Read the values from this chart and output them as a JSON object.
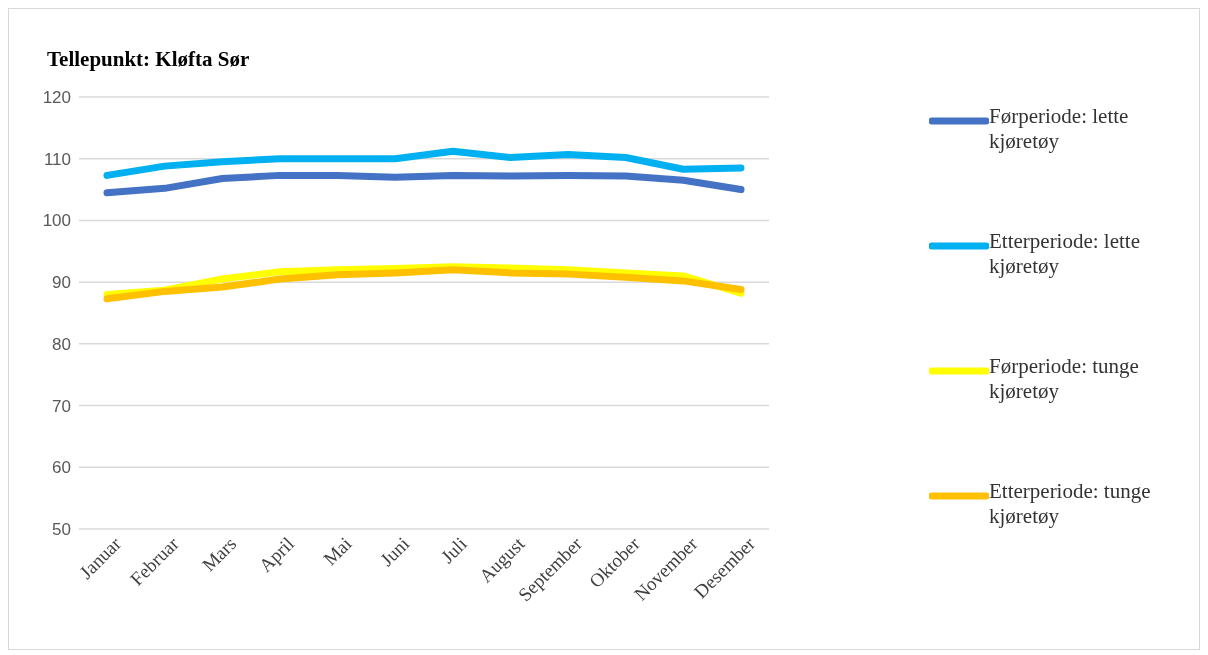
{
  "chart_data": {
    "type": "line",
    "title": "Tellepunkt: Kløfta Sør",
    "categories": [
      "Januar",
      "Februar",
      "Mars",
      "April",
      "Mai",
      "Juni",
      "Juli",
      "August",
      "September",
      "Oktober",
      "November",
      "Desember"
    ],
    "series": [
      {
        "name": "Førperiode: lette kjøretøy",
        "color": "#4472c4",
        "values": [
          104.5,
          105.2,
          106.8,
          107.3,
          107.3,
          107,
          107.3,
          107.2,
          107.3,
          107.2,
          106.5,
          105
        ]
      },
      {
        "name": "Etterperiode: lette kjøretøy",
        "color": "#00b0f0",
        "values": [
          107.3,
          108.8,
          109.5,
          110,
          110,
          110,
          111.2,
          110.2,
          110.7,
          110.2,
          108.3,
          108.5
        ]
      },
      {
        "name": "Førperiode: tunge kjøretøy",
        "color": "#ffff00",
        "values": [
          88,
          88.7,
          90.5,
          91.7,
          92,
          92.2,
          92.5,
          92.3,
          92,
          91.5,
          91,
          88.2
        ]
      },
      {
        "name": "Etterperiode: tunge kjøretøy",
        "color": "#ffc000",
        "values": [
          87.3,
          88.5,
          89.2,
          90.5,
          91.2,
          91.5,
          92,
          91.5,
          91.3,
          90.8,
          90.2,
          88.8
        ]
      }
    ],
    "ylim": [
      50,
      120
    ],
    "yticks": [
      50,
      60,
      70,
      80,
      90,
      100,
      110,
      120
    ],
    "grid": "y",
    "legend": "right",
    "marker": "none",
    "line_style": "solid"
  }
}
